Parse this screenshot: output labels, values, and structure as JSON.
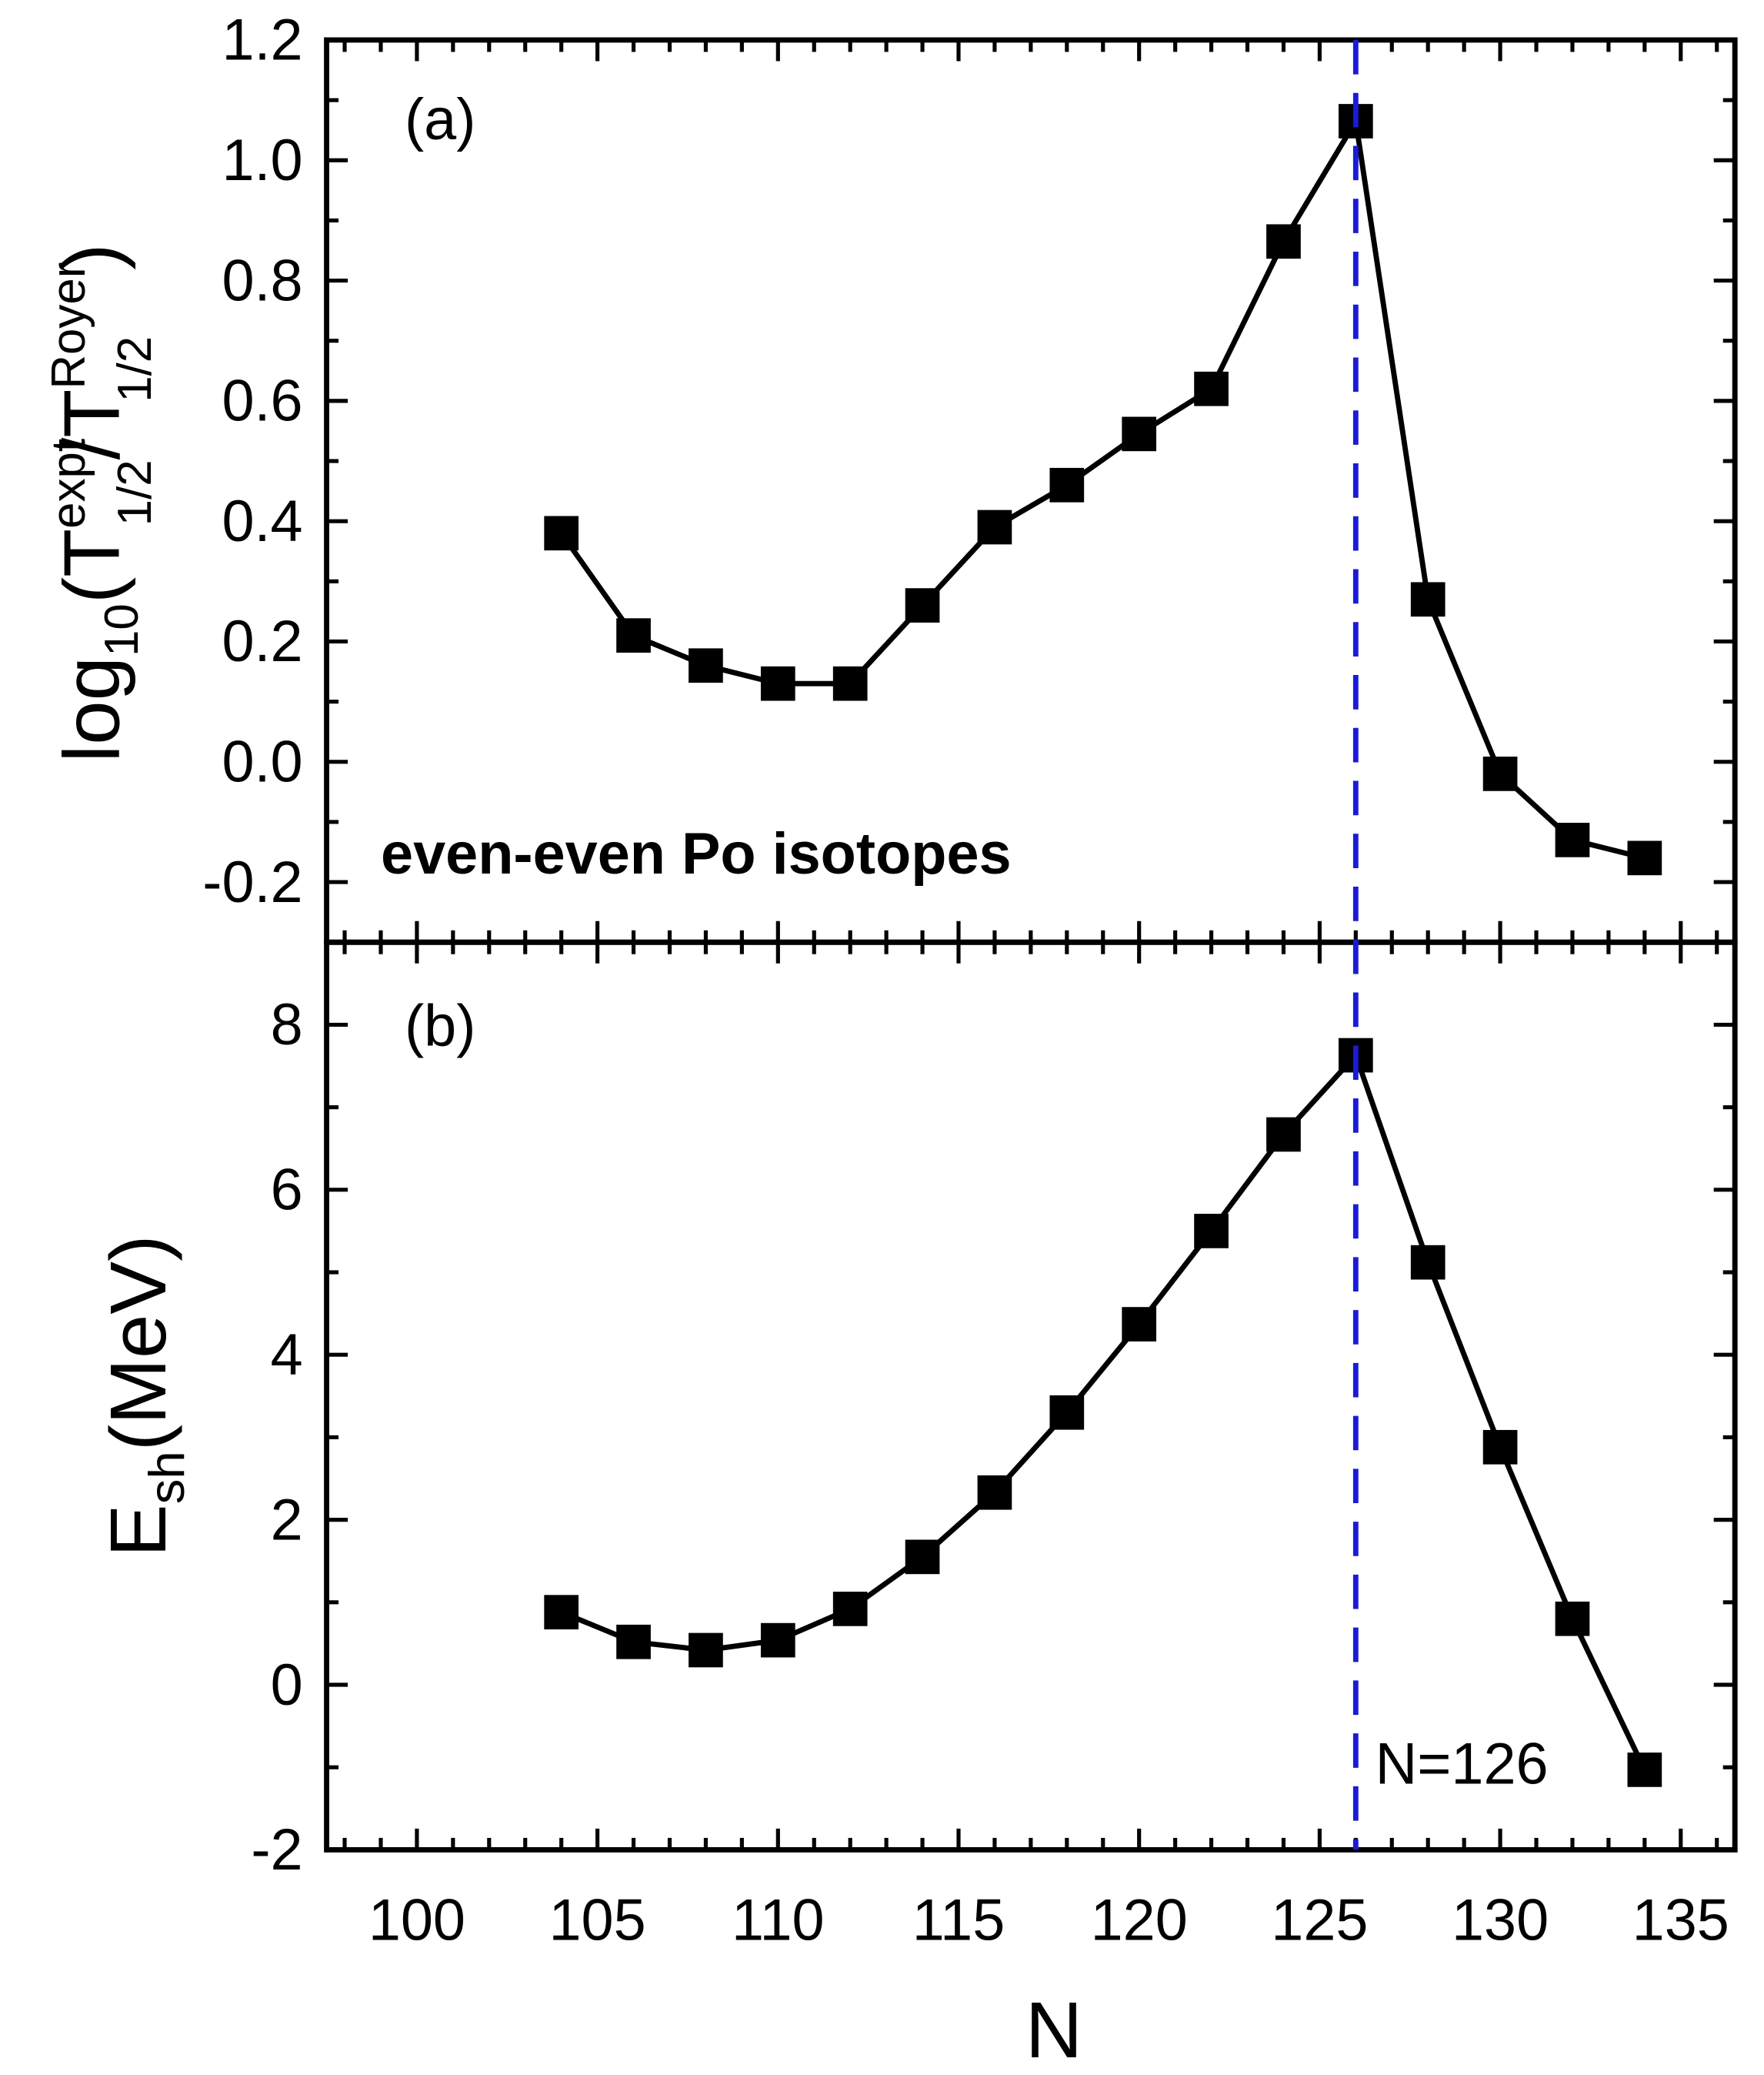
{
  "chart_data": [
    {
      "type": "line",
      "panel_label": "(a)",
      "annotation": "even-even Po isotopes",
      "ylabel": {
        "base": "log",
        "sub10": "10",
        "open": "(T",
        "sup1": "expt",
        "sub1": "1/2",
        "slash": "/T",
        "sup2": "Royer",
        "sub2": "1/2",
        "close": ")"
      },
      "xlim": [
        97.5,
        136.5
      ],
      "ylim": [
        -0.3,
        1.2
      ],
      "yticks": [
        -0.2,
        0.0,
        0.2,
        0.4,
        0.6,
        0.8,
        1.0,
        1.2
      ],
      "ytick_labels": [
        "-0.2",
        "0.0",
        "0.2",
        "0.4",
        "0.6",
        "0.8",
        "1.0",
        "1.2"
      ],
      "grid": false,
      "marker": "square",
      "color": "#000000",
      "x": [
        104,
        106,
        108,
        110,
        112,
        114,
        116,
        118,
        120,
        122,
        124,
        126,
        128,
        130,
        132,
        134
      ],
      "y": [
        0.38,
        0.21,
        0.16,
        0.13,
        0.13,
        0.26,
        0.39,
        0.46,
        0.545,
        0.62,
        0.865,
        1.065,
        0.27,
        -0.02,
        -0.13,
        -0.16
      ]
    },
    {
      "type": "line",
      "panel_label": "(b)",
      "annotation": "N=126",
      "ylabel": {
        "base": "E",
        "sub": "sh",
        "rest": "(MeV)"
      },
      "xlabel": "N",
      "xlim": [
        97.5,
        136.5
      ],
      "ylim": [
        -2,
        9
      ],
      "xticks": [
        100,
        105,
        110,
        115,
        120,
        125,
        130,
        135
      ],
      "xtick_labels": [
        "100",
        "105",
        "110",
        "115",
        "120",
        "125",
        "130",
        "135"
      ],
      "yticks": [
        -2,
        0,
        2,
        4,
        6,
        8
      ],
      "ytick_labels": [
        "-2",
        "0",
        "2",
        "4",
        "6",
        "8"
      ],
      "grid": false,
      "marker": "square",
      "color": "#000000",
      "x": [
        104,
        106,
        108,
        110,
        112,
        114,
        116,
        118,
        120,
        122,
        124,
        126,
        128,
        130,
        132,
        134
      ],
      "y": [
        0.88,
        0.52,
        0.42,
        0.54,
        0.92,
        1.55,
        2.33,
        3.3,
        4.37,
        5.5,
        6.67,
        7.63,
        5.12,
        2.88,
        0.8,
        -1.03
      ]
    }
  ],
  "reference_line": {
    "x": 126,
    "style": "dashed",
    "color": "#1a1ad8"
  }
}
